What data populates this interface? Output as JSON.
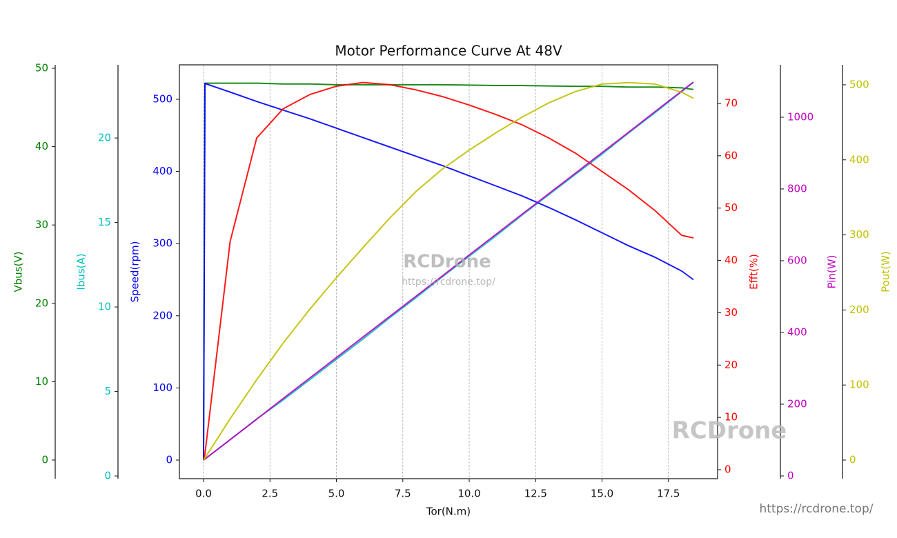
{
  "chart_data": {
    "type": "line",
    "title": "Motor Performance Curve At 48V",
    "x_label": "Tor(N.m)",
    "x": [
      0,
      0.05,
      1,
      2,
      3,
      4,
      5,
      6,
      7,
      8,
      9,
      10,
      11,
      12,
      13,
      14,
      15,
      16,
      17,
      18,
      18.44
    ],
    "xlim": [
      -0.91,
      19.35
    ],
    "xticks": [
      {
        "value": 0,
        "label": "0.0"
      },
      2.5,
      {
        "value": 5,
        "label": "5.0"
      },
      7.5,
      {
        "value": 10,
        "label": "10.0"
      },
      12.5,
      {
        "value": 15,
        "label": "15.0"
      },
      17.5
    ],
    "grid": true,
    "series": [
      {
        "name": "Vbus(V)",
        "color": "#008000",
        "ylim": [
          -2.38,
          50.44
        ],
        "yticks": [
          0,
          10,
          20,
          30,
          40,
          50
        ],
        "values": [
          0,
          48.1,
          48.1,
          48.1,
          48.0,
          48.0,
          47.9,
          47.9,
          47.9,
          47.9,
          47.9,
          47.85,
          47.8,
          47.8,
          47.75,
          47.7,
          47.7,
          47.6,
          47.6,
          47.5,
          47.3
        ]
      },
      {
        "name": "Ibus(A)",
        "color": "#00bfbf",
        "ylim": [
          -0.16,
          24.33
        ],
        "yticks": [
          0,
          5,
          10,
          15,
          20
        ],
        "values": [
          0.94,
          1.0,
          2.15,
          3.37,
          4.5,
          5.7,
          6.9,
          8.1,
          9.35,
          10.55,
          11.8,
          13.0,
          14.2,
          15.45,
          16.65,
          17.85,
          19.05,
          20.3,
          21.5,
          22.75,
          23.3
        ]
      },
      {
        "name": "Speed(rpm)",
        "color": "#0000ff",
        "ylim": [
          -25.8,
          547.8
        ],
        "yticks": [
          0,
          100,
          200,
          300,
          400,
          500
        ],
        "values": [
          0,
          522,
          510,
          497,
          485,
          473,
          460,
          447,
          434,
          421,
          408,
          394,
          380,
          366,
          350,
          333,
          315,
          297,
          281,
          262,
          250
        ]
      },
      {
        "name": "Efft(%)",
        "color": "#ff0000",
        "ylim": [
          -1.71,
          77.38
        ],
        "yticks": [
          0,
          10,
          20,
          30,
          40,
          50,
          60,
          70
        ],
        "values": [
          1.8,
          3,
          43.6,
          63.4,
          69,
          71.7,
          73.3,
          74,
          73.6,
          72.6,
          71.3,
          69.7,
          67.9,
          65.9,
          63.4,
          60.5,
          57,
          53.5,
          49.5,
          44.8,
          44.3
        ]
      },
      {
        "name": "Pin(W)",
        "color": "#bf00bf",
        "ylim": [
          -7.7,
          1146
        ],
        "yticks": [
          0,
          200,
          400,
          600,
          800,
          1000
        ],
        "values": [
          44,
          47,
          101,
          158,
          216,
          273,
          330,
          387,
          444,
          501,
          558,
          616,
          673,
          730,
          787,
          844,
          901,
          958,
          1016,
          1073,
          1098
        ]
      },
      {
        "name": "Pout(W)",
        "color": "#bfbf00",
        "ylim": [
          -24.8,
          526.6
        ],
        "yticks": [
          0,
          100,
          200,
          300,
          400,
          500
        ],
        "values": [
          0,
          2.6,
          55,
          107,
          156,
          201,
          243,
          283,
          322,
          358,
          388,
          413,
          436,
          457,
          476,
          491,
          501,
          503,
          501,
          490,
          482
        ]
      }
    ]
  },
  "watermarks": [
    "RCDrone",
    "https://rcdrone.top/",
    "RCDrone",
    "https://rcdrone.top/"
  ]
}
